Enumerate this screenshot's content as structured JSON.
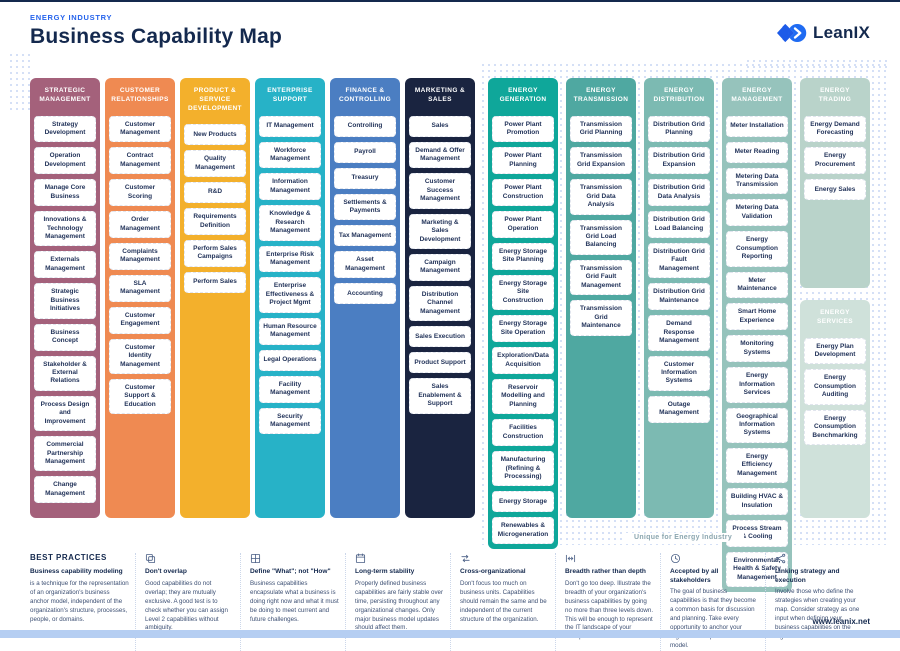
{
  "header": {
    "eyebrow": "ENERGY INDUSTRY",
    "title": "Business Capability Map",
    "brand": "LeanIX"
  },
  "colors": {
    "accent_blue": "#2563ec",
    "navy": "#14294e",
    "footer_bar": "#b5cef2",
    "dot_pattern": "#c7d6f3"
  },
  "map": {
    "zone_label": "Unique for Energy Industry",
    "standard_columns": [
      {
        "title": "STRATEGIC MANAGEMENT",
        "color": "#a4617b",
        "items": [
          "Strategy Development",
          "Operation Development",
          "Manage Core Business",
          "Innovations & Technology Management",
          "Externals Management",
          "Strategic Business Initiatives",
          "Business Concept",
          "Stakeholder & External Relations",
          "Process Design and Improvement",
          "Commercial Partnership Management",
          "Change Management"
        ]
      },
      {
        "title": "CUSTOMER RELATIONSHIPS",
        "color": "#ef8a52",
        "items": [
          "Customer Management",
          "Contract Management",
          "Customer Scoring",
          "Order Management",
          "Complaints Management",
          "SLA Management",
          "Customer Engagement",
          "Customer Identity Management",
          "Customer Support & Education"
        ]
      },
      {
        "title": "PRODUCT & SERVICE DEVELOPMENT",
        "color": "#f3b02c",
        "items": [
          "New Products",
          "Quality Management",
          "R&D",
          "Requirements Definition",
          "Perform Sales Campaigns",
          "Perform Sales"
        ]
      },
      {
        "title": "ENTERPRISE SUPPORT",
        "color": "#27b2c7",
        "items": [
          "IT Management",
          "Workforce Management",
          "Information Management",
          "Knowledge & Research Management",
          "Enterprise Risk Management",
          "Enterprise Effectiveness & Project Mgmt",
          "Human Resource Management",
          "Legal Operations",
          "Facility Management",
          "Security Management"
        ]
      },
      {
        "title": "FINANCE & CONTROLLING",
        "color": "#4b7ec2",
        "items": [
          "Controlling",
          "Payroll",
          "Treasury",
          "Settlements & Payments",
          "Tax Management",
          "Asset Management",
          "Accounting"
        ]
      },
      {
        "title": "MARKETING & SALES",
        "color": "#1a2440",
        "items": [
          "Sales",
          "Demand & Offer Management",
          "Customer Success Management",
          "Marketing & Sales Development",
          "Campaign Management",
          "Distribution Channel Management",
          "Sales Execution",
          "Product Support",
          "Sales Enablement & Support"
        ]
      }
    ],
    "energy_columns": [
      {
        "blocks": [
          {
            "title": "ENERGY GENERATION",
            "color": "#0fa79a",
            "items": [
              "Power Plant Promotion",
              "Power Plant Planning",
              "Power Plant Construction",
              "Power Plant Operation",
              "Energy Storage Site Planning",
              "Energy Storage Site Construction",
              "Energy Storage Site Operation",
              "Exploration/Data Acquisition",
              "Reservoir Modelling and Planning",
              "Facilities Construction",
              "Manufacturing (Refining & Processing)",
              "Energy Storage",
              "Renewables & Microgeneration"
            ]
          }
        ]
      },
      {
        "blocks": [
          {
            "title": "ENERGY TRANSMISSION",
            "color": "#4fa8a1",
            "items": [
              "Transmission Grid Planning",
              "Transmission Grid Expansion",
              "Transmission Grid Data Analysis",
              "Transmission Grid Load Balancing",
              "Transmission Grid Fault Management",
              "Transmission Grid Maintenance"
            ]
          }
        ]
      },
      {
        "blocks": [
          {
            "title": "ENERGY DISTRIBUTION",
            "color": "#7cbab2",
            "items": [
              "Distribution Grid Planning",
              "Distribution Grid Expansion",
              "Distribution Grid Data Analysis",
              "Distribution Grid Load Balancing",
              "Distribution Grid Fault Management",
              "Distribution Grid Maintenance",
              "Demand Response Management",
              "Customer Information Systems",
              "Outage Management"
            ]
          }
        ]
      },
      {
        "blocks": [
          {
            "title": "ENERGY MANAGEMENT",
            "color": "#96c3bc",
            "items": [
              "Meter Installation",
              "Meter Reading",
              "Metering Data Transmission",
              "Metering Data Validation",
              "Energy Consumption Reporting",
              "Meter Maintenance",
              "Smart Home Experience",
              "Monitoring Systems",
              "Energy Information Services",
              "Geographical Information Systems",
              "Energy Efficiency Management",
              "Building HVAC & Insulation",
              "Process Stream & Cooling",
              "Environmental, Health & Safety Management"
            ]
          }
        ]
      },
      {
        "blocks": [
          {
            "title": "ENERGY TRADING",
            "color": "#b9d3ca",
            "items": [
              "Energy Demand Forecasting",
              "Energy Procurement",
              "Energy Sales"
            ]
          },
          {
            "title": "ENERGY SERVICES",
            "color": "#cfe1da",
            "items": [
              "Energy Plan Development",
              "Energy Consumption Auditing",
              "Energy Consumption Benchmarking"
            ]
          }
        ]
      }
    ]
  },
  "best_practices": {
    "heading": "BEST PRACTICES",
    "items": [
      {
        "icon": null,
        "title": "Business capability modeling",
        "text": "is a technique for the representation of an organization's business anchor model, independent of the organization's structure, processes, people, or domains."
      },
      {
        "icon": "overlap-icon",
        "title": "Don't overlap",
        "text": "Good capabilities do not overlap; they are mutually exclusive. A good test is to check whether you can assign Level 2 capabilities without ambiguity."
      },
      {
        "icon": "grid-icon",
        "title": "Define \"What\"; not \"How\"",
        "text": "Business capabilities encapsulate what a business is doing right now and what it must be doing to meet current and future challenges."
      },
      {
        "icon": "calendar-icon",
        "title": "Long-term stability",
        "text": "Properly defined business capabilities are fairly stable over time, persisting throughout any organizational changes. Only major business model updates should affect them."
      },
      {
        "icon": "swap-arrows-icon",
        "title": "Cross-organizational",
        "text": "Don't focus too much on business units. Capabilities should remain the same and be independent of the current structure of the organization."
      },
      {
        "icon": "breadth-icon",
        "title": "Breadth rather than depth",
        "text": "Don't go too deep. Illustrate the breadth of your organization's business capabilities by going no more than three levels down. This will be enough to represent the IT landscape of your enterprise."
      },
      {
        "icon": "clock-icon",
        "title": "Accepted by all stakeholders",
        "text": "The goal of business capabilities is that they become a common basis for discussion and planning. Take every opportunity to anchor your organization's processes to the model."
      },
      {
        "icon": "share-network-icon",
        "title": "Linking strategy and execution",
        "text": "Involve those who define the strategies when creating your map. Consider strategy as one input when defining your business capabilities on the highest level."
      }
    ]
  },
  "footer": {
    "website": "www.leanix.net"
  }
}
